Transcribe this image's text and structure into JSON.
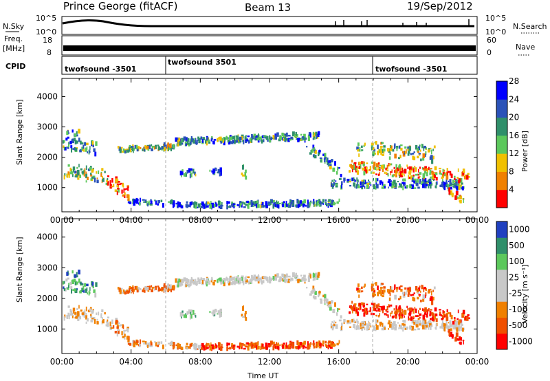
{
  "header": {
    "station": "Prince George (fitACF)",
    "beam": "Beam 13",
    "date": "19/Sep/2012"
  },
  "strips": {
    "nsky_label": "N.Sky",
    "nsky_ticks": [
      "10^5",
      "10^0"
    ],
    "nsearch_label": "N.Search",
    "nsearch_ticks": [
      "10^5",
      "10^0"
    ],
    "freq_label_line1": "Freq.",
    "freq_label_line2": "[MHz]",
    "freq_ticks": [
      "18",
      "8"
    ],
    "nave_label": "Nave",
    "nave_ticks": [
      "60",
      "0"
    ],
    "cpid_label": "CPID",
    "cpid_segments": [
      {
        "label": "twofsound -3501",
        "start_hour": 0,
        "end_hour": 6
      },
      {
        "label": "twofsound 3501",
        "start_hour": 6,
        "end_hour": 18
      },
      {
        "label": "twofsound -3501",
        "start_hour": 18,
        "end_hour": 24
      }
    ]
  },
  "chart_data": [
    {
      "type": "heatmap",
      "name": "power",
      "ylabel": "Slant Range [km]",
      "y_ticks": [
        1000,
        2000,
        3000,
        4000
      ],
      "ylim": [
        200,
        4600
      ],
      "xlim": [
        0,
        24
      ],
      "x_tick_labels": [
        "00:00",
        "04:00",
        "08:00",
        "12:00",
        "16:00",
        "20:00",
        "00:00"
      ],
      "colorbar": {
        "label": "Power [dB]",
        "ticks": [
          "4",
          "8",
          "12",
          "16",
          "20",
          "24",
          "28"
        ],
        "colors": [
          "#0000ff",
          "#2a52b8",
          "#2f8f6a",
          "#5cc85c",
          "#f0c000",
          "#f08000",
          "#ff0000"
        ]
      }
    },
    {
      "type": "heatmap",
      "name": "velocity",
      "ylabel": "Slant Range [km]",
      "y_ticks": [
        1000,
        2000,
        3000,
        4000
      ],
      "ylim": [
        200,
        4600
      ],
      "xlim": [
        0,
        24
      ],
      "x_tick_labels": [
        "00:00",
        "04:00",
        "08:00",
        "12:00",
        "16:00",
        "20:00",
        "00:00"
      ],
      "xlabel": "Time UT",
      "colorbar": {
        "label": "Velocity [m s⁻¹]",
        "ticks": [
          "1000",
          "500",
          "100",
          "25",
          "-25",
          "-100",
          "-500",
          "-1000"
        ],
        "colors": [
          "#2040c0",
          "#2f8f6a",
          "#5cc85c",
          "#c8c8c8",
          "#c8c8c8",
          "#f08000",
          "#f05000",
          "#ff0000"
        ]
      }
    }
  ]
}
